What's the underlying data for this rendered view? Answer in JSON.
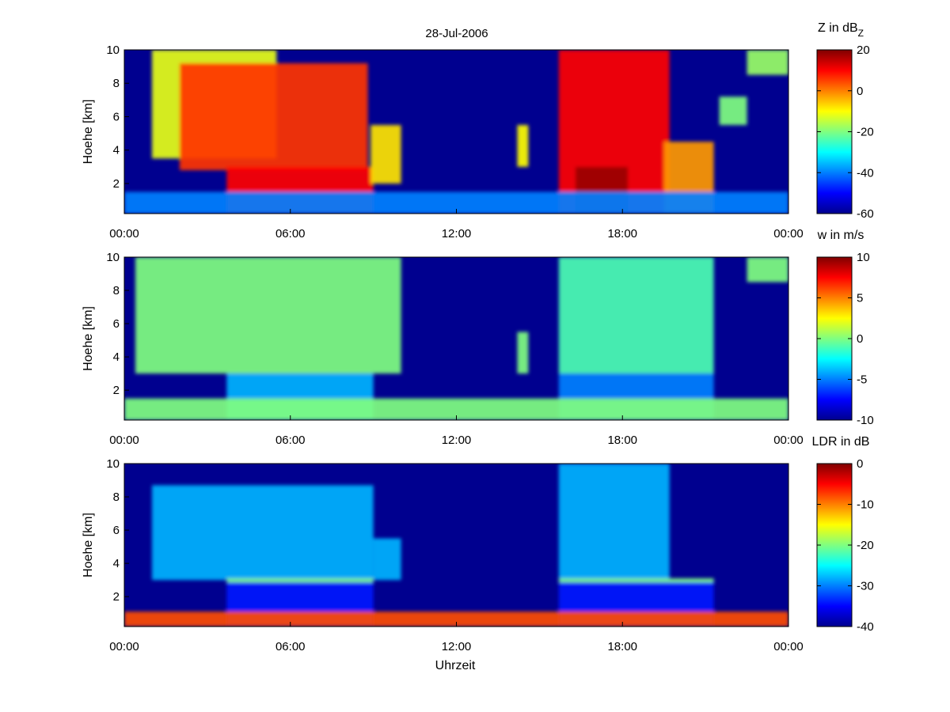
{
  "figure": {
    "title": "28-Jul-2006",
    "xlabel": "Uhrzeit",
    "ylabel": "Hoehe [km]",
    "x_tick_labels": [
      "00:00",
      "06:00",
      "12:00",
      "18:00",
      "00:00"
    ],
    "y_tick_labels": [
      "2",
      "4",
      "6",
      "8",
      "10"
    ]
  },
  "colors": {
    "background": "#00008f",
    "colormap": "jet"
  },
  "chart_data": [
    {
      "type": "heatmap",
      "quantity": "Z",
      "colorbar_title": "Z in dB",
      "colorbar_title_sub": "Z",
      "x_unit": "hours",
      "xlim": [
        0,
        24
      ],
      "ylim": [
        0.2,
        10
      ],
      "y_unit": "km",
      "clim": [
        -60,
        20
      ],
      "colorbar_ticks": [
        20,
        0,
        -20,
        -40,
        -60
      ],
      "regions": [
        {
          "name": "",
          "x": [
            1.0,
            5.5
          ],
          "y": [
            3.5,
            10.0
          ],
          "value": -12
        },
        {
          "name": "",
          "x": [
            2.0,
            8.8
          ],
          "y": [
            2.8,
            9.2
          ],
          "value": 6
        },
        {
          "name": "",
          "x": [
            3.7,
            9.0
          ],
          "y": [
            0.2,
            3.0
          ],
          "value": 10
        },
        {
          "name": "",
          "x": [
            8.9,
            10.0
          ],
          "y": [
            2.0,
            5.5
          ],
          "value": -8
        },
        {
          "name": "",
          "x": [
            14.2,
            14.6
          ],
          "y": [
            3.0,
            5.5
          ],
          "value": -10
        },
        {
          "name": "",
          "x": [
            15.7,
            19.7
          ],
          "y": [
            0.2,
            10.0
          ],
          "value": 10
        },
        {
          "name": "",
          "x": [
            16.3,
            18.2
          ],
          "y": [
            0.2,
            3.0
          ],
          "value": 18
        },
        {
          "name": "",
          "x": [
            19.5,
            21.3
          ],
          "y": [
            0.2,
            4.5
          ],
          "value": -2
        },
        {
          "name": "",
          "x": [
            22.5,
            24.0
          ],
          "y": [
            8.5,
            10.0
          ],
          "value": -18
        },
        {
          "name": "",
          "x": [
            21.5,
            22.5
          ],
          "y": [
            5.5,
            7.2
          ],
          "value": -20
        },
        {
          "name": "",
          "x": [
            0.0,
            24.0
          ],
          "y": [
            0.2,
            1.5
          ],
          "value": -40
        }
      ]
    },
    {
      "type": "heatmap",
      "quantity": "w",
      "colorbar_title": "w in m/s",
      "x_unit": "hours",
      "xlim": [
        0,
        24
      ],
      "ylim": [
        0.2,
        10
      ],
      "y_unit": "km",
      "clim": [
        -10,
        10
      ],
      "colorbar_ticks": [
        10,
        5,
        0,
        -5,
        -10
      ],
      "regions": [
        {
          "name": "",
          "x": [
            0.4,
            10.0
          ],
          "y": [
            3.0,
            10.0
          ],
          "value": 0
        },
        {
          "name": "",
          "x": [
            3.7,
            9.0
          ],
          "y": [
            0.2,
            3.0
          ],
          "value": -4
        },
        {
          "name": "",
          "x": [
            14.2,
            14.6
          ],
          "y": [
            3.0,
            5.5
          ],
          "value": 0
        },
        {
          "name": "",
          "x": [
            15.7,
            21.3
          ],
          "y": [
            3.0,
            10.0
          ],
          "value": -1
        },
        {
          "name": "",
          "x": [
            15.7,
            21.3
          ],
          "y": [
            0.2,
            3.0
          ],
          "value": -5
        },
        {
          "name": "",
          "x": [
            0.0,
            24.0
          ],
          "y": [
            0.2,
            1.5
          ],
          "value": 0
        },
        {
          "name": "",
          "x": [
            22.5,
            24.0
          ],
          "y": [
            8.5,
            10.0
          ],
          "value": 0
        }
      ]
    },
    {
      "type": "heatmap",
      "quantity": "LDR",
      "colorbar_title": "LDR in dB",
      "x_unit": "hours",
      "xlim": [
        0,
        24
      ],
      "ylim": [
        0.2,
        10
      ],
      "y_unit": "km",
      "clim": [
        -40,
        0
      ],
      "colorbar_ticks": [
        0,
        -10,
        -20,
        -30,
        -40
      ],
      "regions": [
        {
          "name": "",
          "x": [
            1.0,
            9.0
          ],
          "y": [
            3.0,
            8.7
          ],
          "value": -28
        },
        {
          "name": "",
          "x": [
            3.7,
            9.0
          ],
          "y": [
            0.2,
            3.0
          ],
          "value": -34
        },
        {
          "name": "",
          "x": [
            9.0,
            10.0
          ],
          "y": [
            3.0,
            5.5
          ],
          "value": -28
        },
        {
          "name": "",
          "x": [
            15.7,
            19.7
          ],
          "y": [
            3.0,
            10.0
          ],
          "value": -28
        },
        {
          "name": "",
          "x": [
            15.7,
            21.3
          ],
          "y": [
            0.2,
            3.0
          ],
          "value": -34
        },
        {
          "name": "",
          "x": [
            0.0,
            24.0
          ],
          "y": [
            0.2,
            1.1
          ],
          "value": -8
        },
        {
          "name": "",
          "x": [
            3.7,
            9.0
          ],
          "y": [
            2.85,
            3.1
          ],
          "value": -20
        },
        {
          "name": "",
          "x": [
            15.7,
            21.3
          ],
          "y": [
            2.85,
            3.1
          ],
          "value": -20
        }
      ]
    }
  ]
}
